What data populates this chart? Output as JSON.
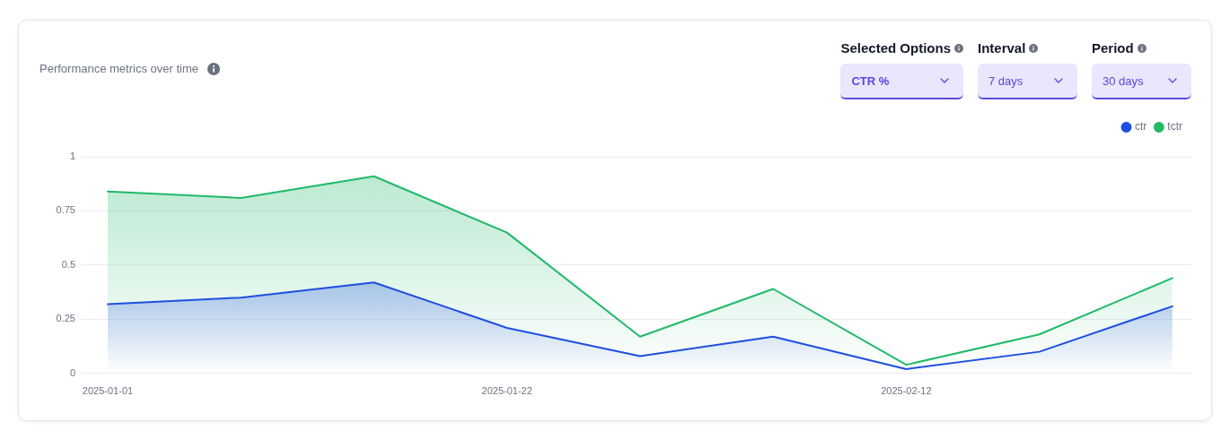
{
  "chart_data": {
    "type": "area",
    "title": "Performance metrics over time",
    "annotations": [
      "Selected Options",
      "CTR %",
      "Interval",
      "7 days",
      "Period",
      "30 days"
    ],
    "x": [
      "2025-01-01",
      "2025-01-08",
      "2025-01-15",
      "2025-01-22",
      "2025-01-29",
      "2025-02-05",
      "2025-02-12",
      "2025-02-19",
      "2025-02-26"
    ],
    "series": [
      {
        "name": "ctr",
        "color": "#1f4fe0",
        "values": [
          0.32,
          0.35,
          0.42,
          0.21,
          0.08,
          0.17,
          0.02,
          0.1,
          0.31
        ]
      },
      {
        "name": "tctr",
        "color": "#21b968",
        "values": [
          0.84,
          0.81,
          0.91,
          0.65,
          0.17,
          0.39,
          0.04,
          0.18,
          0.44
        ]
      }
    ],
    "xlim": [
      "2024-12-30T14:00",
      "2025-02-27"
    ],
    "xticks": [
      "2025-01-01",
      "2025-01-22",
      "2025-02-12"
    ],
    "ylim": [
      0,
      1
    ],
    "yticks": [
      0,
      0.25,
      0.5,
      0.75,
      1
    ],
    "grid": "y",
    "legend": "top right",
    "marker": "none"
  }
}
